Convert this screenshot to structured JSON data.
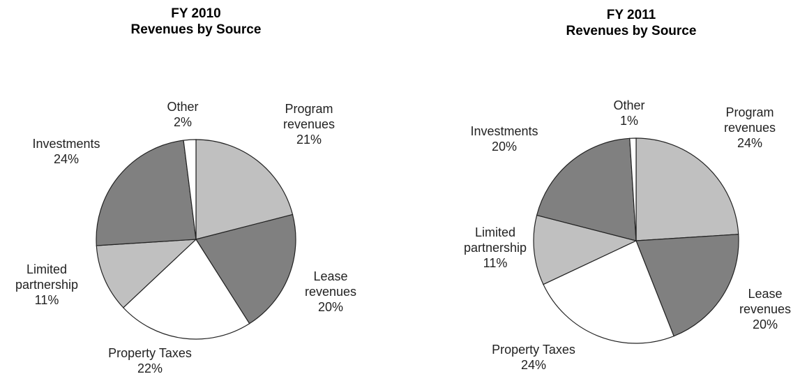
{
  "chart_data": [
    {
      "type": "pie",
      "title": "FY 2010",
      "subtitle": "Revenues by Source",
      "categories": [
        "Program revenues",
        "Lease revenues",
        "Property Taxes",
        "Limited partnership",
        "Investments",
        "Other"
      ],
      "values": [
        21,
        20,
        22,
        11,
        24,
        2
      ],
      "value_labels": [
        "21%",
        "20%",
        "22%",
        "11%",
        "24%",
        "2%"
      ],
      "colors": [
        "#c0c0c0",
        "#808080",
        "#ffffff",
        "#c0c0c0",
        "#808080",
        "#ffffff"
      ]
    },
    {
      "type": "pie",
      "title": "FY 2011",
      "subtitle": "Revenues by Source",
      "categories": [
        "Program revenues",
        "Lease revenues",
        "Property Taxes",
        "Limited partnership",
        "Investments",
        "Other"
      ],
      "values": [
        24,
        20,
        24,
        11,
        20,
        1
      ],
      "value_labels": [
        "24%",
        "20%",
        "24%",
        "11%",
        "20%",
        "1%"
      ],
      "colors": [
        "#c0c0c0",
        "#808080",
        "#ffffff",
        "#c0c0c0",
        "#808080",
        "#ffffff"
      ]
    }
  ]
}
